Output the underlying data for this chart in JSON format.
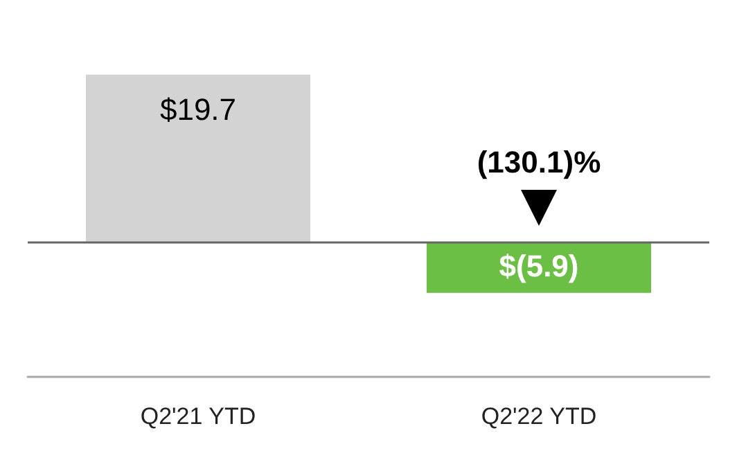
{
  "chart_data": {
    "type": "bar",
    "categories": [
      "Q2'21 YTD",
      "Q2'22 YTD"
    ],
    "values": [
      19.7,
      -5.9
    ],
    "colors": [
      "#d3d3d3",
      "#6cbf45"
    ],
    "value_labels": [
      "$19.7",
      "$(5.9)"
    ],
    "annotations": [
      "(130.1)%"
    ],
    "ref_lines": [
      {
        "axis": "y",
        "value": 0,
        "color": "#666666"
      }
    ]
  }
}
